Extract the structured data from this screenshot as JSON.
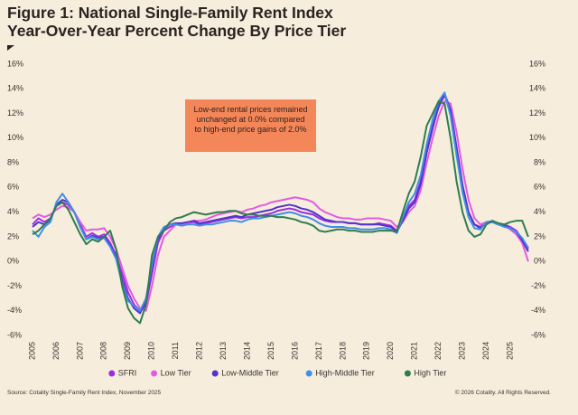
{
  "chart_data": {
    "type": "line",
    "title": "Figure 1: National Single-Family Rent Index",
    "subtitle": "Year-Over-Year Percent Change By Price Tier",
    "annotation": "Low-end rental prices remained unchanged at 0.0% compared to high-end price gains of 2.0%",
    "source": "Source: Cotality Single-Family Rent Index, November 2025",
    "copyright": "© 2026 Cotality. All Rights Reserved.",
    "x": [
      2005,
      2005.25,
      2005.5,
      2005.75,
      2006,
      2006.25,
      2006.5,
      2006.75,
      2007,
      2007.25,
      2007.5,
      2007.75,
      2008,
      2008.25,
      2008.5,
      2008.75,
      2009,
      2009.25,
      2009.5,
      2009.75,
      2010,
      2010.25,
      2010.5,
      2010.75,
      2011,
      2011.25,
      2011.5,
      2011.75,
      2012,
      2012.25,
      2012.5,
      2012.75,
      2013,
      2013.25,
      2013.5,
      2013.75,
      2014,
      2014.25,
      2014.5,
      2014.75,
      2015,
      2015.25,
      2015.5,
      2015.75,
      2016,
      2016.25,
      2016.5,
      2016.75,
      2017,
      2017.25,
      2017.5,
      2017.75,
      2018,
      2018.25,
      2018.5,
      2018.75,
      2019,
      2019.25,
      2019.5,
      2019.75,
      2020,
      2020.25,
      2020.5,
      2020.75,
      2021,
      2021.25,
      2021.5,
      2021.75,
      2022,
      2022.25,
      2022.5,
      2022.75,
      2023,
      2023.25,
      2023.5,
      2023.75,
      2024,
      2024.25,
      2024.5,
      2024.75,
      2025,
      2025.25,
      2025.5,
      2025.75
    ],
    "xlim": [
      2005,
      2026
    ],
    "xticks": [
      2005,
      2006,
      2007,
      2008,
      2009,
      2010,
      2011,
      2012,
      2013,
      2014,
      2015,
      2016,
      2017,
      2018,
      2019,
      2020,
      2021,
      2022,
      2023,
      2024,
      2025
    ],
    "ylim": [
      -6,
      16
    ],
    "yticks": [
      {
        "value": -6,
        "label": "-6%"
      },
      {
        "value": -4,
        "label": "-4%"
      },
      {
        "value": -2,
        "label": "-2%"
      },
      {
        "value": 0,
        "label": "0%"
      },
      {
        "value": 2,
        "label": "2%"
      },
      {
        "value": 4,
        "label": "4%"
      },
      {
        "value": 6,
        "label": "6%"
      },
      {
        "value": 8,
        "label": "8%"
      },
      {
        "value": 10,
        "label": "10%"
      },
      {
        "value": 12,
        "label": "12%"
      },
      {
        "value": 14,
        "label": "14%"
      },
      {
        "value": 16,
        "label": "16%"
      }
    ],
    "y2lim": [
      -6,
      16
    ],
    "y2ticks": [
      {
        "value": -6,
        "label": "-6%"
      },
      {
        "value": -4,
        "label": "-4%"
      },
      {
        "value": -2,
        "label": "-2%"
      },
      {
        "value": 0,
        "label": "0%"
      },
      {
        "value": 2,
        "label": "2%"
      },
      {
        "value": 4,
        "label": "4%"
      },
      {
        "value": 6,
        "label": "6%"
      },
      {
        "value": 8,
        "label": "8%"
      },
      {
        "value": 10,
        "label": "10%"
      },
      {
        "value": 12,
        "label": "12%"
      },
      {
        "value": 14,
        "label": "14%"
      },
      {
        "value": 16,
        "label": "16%"
      }
    ],
    "grid": false,
    "series": [
      {
        "name": "SFRI",
        "color": "#9b2fe0",
        "values": [
          3.0,
          3.5,
          3.2,
          3.5,
          4.5,
          4.8,
          4.6,
          4.0,
          3.0,
          2.0,
          2.3,
          2.0,
          2.2,
          1.5,
          0.5,
          -1.0,
          -2.5,
          -3.5,
          -4.0,
          -3.5,
          -1.0,
          1.5,
          2.5,
          2.8,
          3.0,
          3.0,
          3.1,
          3.2,
          3.0,
          3.1,
          3.2,
          3.3,
          3.4,
          3.5,
          3.6,
          3.5,
          3.6,
          3.6,
          3.7,
          3.8,
          3.9,
          4.1,
          4.2,
          4.3,
          4.2,
          4.0,
          3.9,
          3.8,
          3.5,
          3.3,
          3.2,
          3.2,
          3.2,
          3.1,
          3.1,
          3.0,
          3.0,
          3.0,
          3.1,
          3.0,
          2.9,
          2.5,
          3.5,
          4.5,
          5.0,
          6.5,
          9.0,
          11.0,
          12.5,
          13.5,
          12.0,
          9.0,
          6.0,
          4.0,
          3.0,
          2.8,
          3.2,
          3.2,
          3.0,
          3.0,
          2.8,
          2.5,
          1.8,
          1.0
        ]
      },
      {
        "name": "Low Tier",
        "color": "#e35be0",
        "values": [
          3.5,
          3.8,
          3.6,
          3.8,
          4.2,
          4.5,
          4.4,
          4.0,
          3.2,
          2.5,
          2.6,
          2.6,
          2.7,
          2.0,
          1.0,
          -0.5,
          -2.0,
          -3.0,
          -3.8,
          -4.0,
          -2.0,
          0.5,
          2.0,
          2.5,
          3.0,
          3.0,
          3.1,
          3.3,
          3.3,
          3.4,
          3.6,
          3.8,
          3.9,
          4.0,
          4.1,
          4.0,
          4.2,
          4.3,
          4.5,
          4.6,
          4.8,
          4.9,
          5.0,
          5.1,
          5.2,
          5.1,
          5.0,
          4.8,
          4.3,
          4.0,
          3.8,
          3.6,
          3.5,
          3.5,
          3.4,
          3.4,
          3.5,
          3.5,
          3.5,
          3.4,
          3.3,
          2.8,
          3.2,
          4.0,
          4.5,
          5.8,
          8.0,
          10.0,
          11.8,
          13.0,
          12.8,
          10.5,
          7.5,
          5.0,
          3.5,
          3.0,
          3.2,
          3.3,
          3.0,
          2.9,
          2.6,
          2.2,
          1.5,
          0.0
        ]
      },
      {
        "name": "Low-Middle Tier",
        "color": "#5533cc",
        "values": [
          2.8,
          3.2,
          3.0,
          3.4,
          4.6,
          5.0,
          4.8,
          4.0,
          2.8,
          1.8,
          2.1,
          1.9,
          2.0,
          1.3,
          0.3,
          -1.5,
          -3.0,
          -3.8,
          -4.2,
          -3.2,
          -0.5,
          1.8,
          2.7,
          3.0,
          3.1,
          3.1,
          3.2,
          3.3,
          3.1,
          3.2,
          3.3,
          3.4,
          3.5,
          3.6,
          3.7,
          3.6,
          3.8,
          3.9,
          4.0,
          4.1,
          4.2,
          4.4,
          4.5,
          4.6,
          4.5,
          4.3,
          4.2,
          4.0,
          3.7,
          3.4,
          3.3,
          3.2,
          3.2,
          3.1,
          3.1,
          3.0,
          3.0,
          3.0,
          3.0,
          2.9,
          2.8,
          2.4,
          3.3,
          4.3,
          4.8,
          6.3,
          8.8,
          10.8,
          12.6,
          13.6,
          12.3,
          9.3,
          6.2,
          4.0,
          3.0,
          2.7,
          3.1,
          3.2,
          3.0,
          2.9,
          2.7,
          2.4,
          1.7,
          0.8
        ]
      },
      {
        "name": "High-Middle Tier",
        "color": "#3f8fe6",
        "values": [
          2.5,
          2.0,
          2.8,
          3.2,
          4.8,
          5.5,
          4.8,
          4.0,
          2.8,
          1.8,
          2.0,
          1.8,
          1.9,
          1.2,
          0.2,
          -1.8,
          -3.2,
          -3.6,
          -4.0,
          -3.0,
          -0.2,
          2.0,
          2.8,
          3.0,
          3.0,
          2.9,
          3.0,
          3.0,
          2.9,
          3.0,
          3.0,
          3.1,
          3.2,
          3.3,
          3.3,
          3.2,
          3.4,
          3.5,
          3.5,
          3.6,
          3.7,
          3.8,
          3.9,
          4.0,
          3.9,
          3.7,
          3.6,
          3.4,
          3.1,
          2.9,
          2.8,
          2.8,
          2.8,
          2.7,
          2.7,
          2.6,
          2.6,
          2.6,
          2.7,
          2.7,
          2.6,
          2.3,
          3.6,
          4.8,
          5.5,
          7.0,
          9.5,
          11.5,
          13.0,
          13.7,
          11.8,
          8.6,
          5.6,
          3.6,
          2.7,
          2.6,
          3.2,
          3.2,
          3.0,
          2.8,
          2.7,
          2.4,
          1.9,
          1.1
        ]
      },
      {
        "name": "High Tier",
        "color": "#2e7d4f",
        "values": [
          2.2,
          2.5,
          3.0,
          3.5,
          4.5,
          4.8,
          4.2,
          3.2,
          2.2,
          1.4,
          1.8,
          1.6,
          2.0,
          2.5,
          1.0,
          -2.0,
          -3.8,
          -4.6,
          -5.0,
          -3.5,
          0.5,
          2.0,
          2.5,
          3.2,
          3.5,
          3.6,
          3.8,
          4.0,
          3.9,
          3.8,
          3.9,
          4.0,
          4.0,
          4.1,
          4.1,
          3.9,
          3.8,
          3.8,
          3.7,
          3.7,
          3.7,
          3.6,
          3.6,
          3.5,
          3.4,
          3.2,
          3.1,
          2.9,
          2.5,
          2.4,
          2.5,
          2.6,
          2.6,
          2.5,
          2.5,
          2.4,
          2.4,
          2.4,
          2.5,
          2.5,
          2.5,
          2.4,
          4.0,
          5.5,
          6.5,
          8.5,
          11.0,
          12.0,
          13.0,
          12.8,
          10.0,
          6.5,
          4.0,
          2.5,
          2.0,
          2.2,
          3.0,
          3.3,
          3.1,
          3.0,
          3.2,
          3.3,
          3.3,
          2.0
        ]
      }
    ]
  }
}
